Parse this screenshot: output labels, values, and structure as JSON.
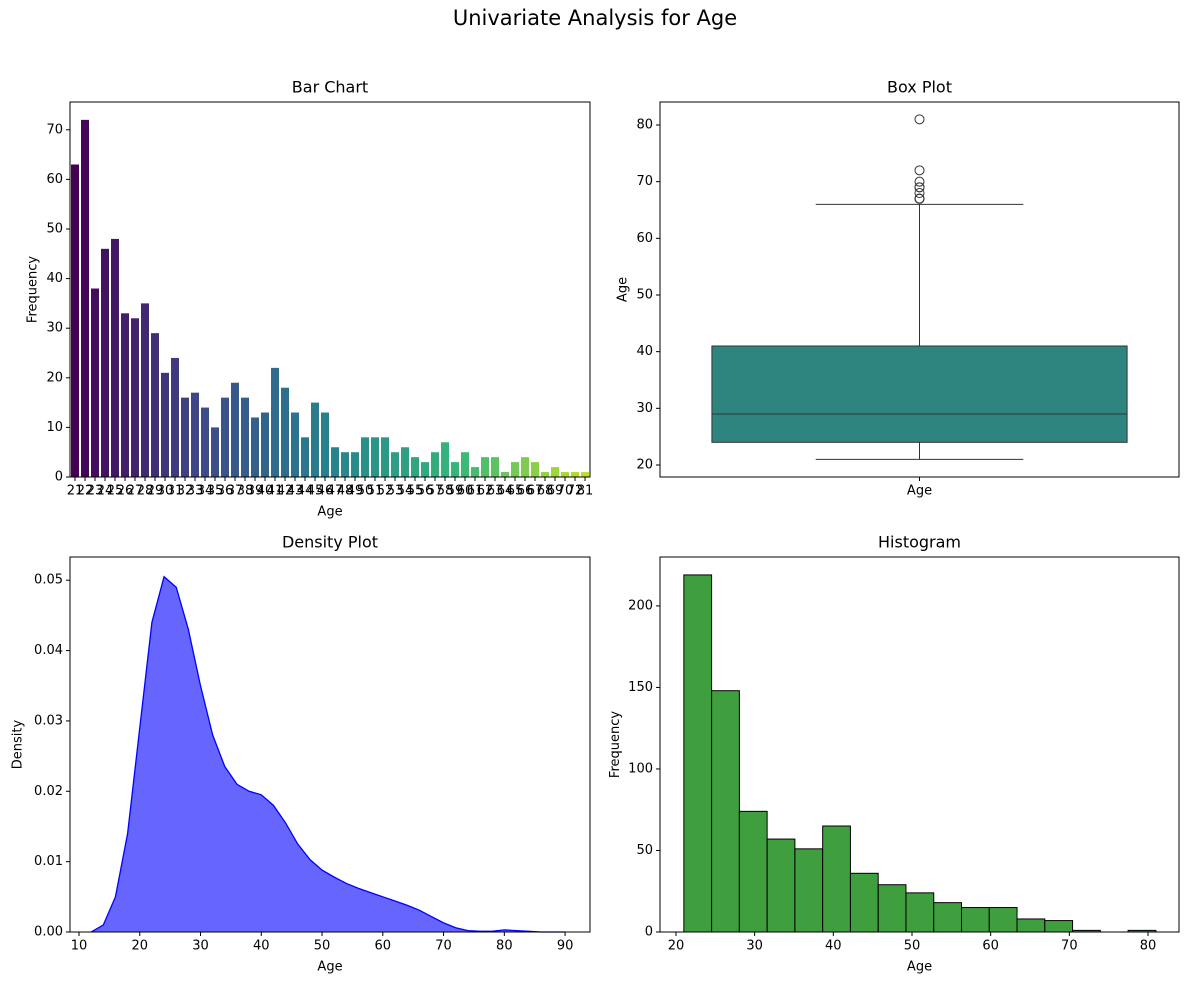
{
  "title": "Univariate Analysis for Age",
  "chart_data": [
    {
      "type": "bar",
      "title": "Bar Chart",
      "xlabel": "Age",
      "ylabel": "Frequency",
      "categories": [
        "21",
        "22",
        "23",
        "24",
        "25",
        "26",
        "27",
        "28",
        "29",
        "30",
        "31",
        "32",
        "33",
        "34",
        "35",
        "36",
        "37",
        "38",
        "39",
        "40",
        "41",
        "42",
        "43",
        "44",
        "45",
        "46",
        "47",
        "48",
        "49",
        "50",
        "51",
        "52",
        "53",
        "54",
        "55",
        "56",
        "57",
        "58",
        "59",
        "60",
        "61",
        "62",
        "63",
        "64",
        "65",
        "66",
        "67",
        "68",
        "69",
        "70",
        "72",
        "81"
      ],
      "values": [
        63,
        72,
        38,
        46,
        48,
        33,
        32,
        35,
        29,
        21,
        24,
        16,
        17,
        14,
        10,
        16,
        19,
        16,
        12,
        13,
        22,
        18,
        13,
        8,
        15,
        13,
        6,
        5,
        5,
        8,
        8,
        8,
        5,
        6,
        4,
        3,
        5,
        7,
        3,
        5,
        2,
        4,
        4,
        1,
        3,
        4,
        3,
        1,
        2,
        1,
        1,
        1
      ],
      "palette": [
        "#440154",
        "#3e4a89",
        "#26828e",
        "#35b779",
        "#bddf26"
      ],
      "ylim": [
        0,
        75.6
      ],
      "yticks": [
        0,
        10,
        20,
        30,
        40,
        50,
        60,
        70
      ]
    },
    {
      "type": "box",
      "title": "Box Plot",
      "ylabel": "Age",
      "categories": [
        "Age"
      ],
      "q1": 24,
      "median": 29,
      "q3": 41,
      "whisker_low": 21,
      "whisker_high": 66,
      "outliers": [
        67,
        67,
        67,
        68,
        69,
        69,
        70,
        72,
        81
      ],
      "color": "#2e8580",
      "ylim": [
        17.88,
        84.06
      ],
      "yticks": [
        20,
        30,
        40,
        50,
        60,
        70,
        80
      ]
    },
    {
      "type": "area",
      "title": "Density Plot",
      "xlabel": "Age",
      "ylabel": "Density",
      "x": [
        12,
        14,
        16,
        18,
        20,
        22,
        24,
        26,
        28,
        30,
        32,
        34,
        36,
        38,
        40,
        42,
        44,
        46,
        48,
        50,
        52,
        54,
        56,
        58,
        60,
        62,
        64,
        66,
        68,
        70,
        72,
        74,
        76,
        78,
        80,
        82,
        84,
        86,
        88,
        90
      ],
      "values": [
        0,
        0.001,
        0.005,
        0.014,
        0.029,
        0.044,
        0.0505,
        0.049,
        0.043,
        0.035,
        0.028,
        0.0235,
        0.021,
        0.02,
        0.0195,
        0.018,
        0.0155,
        0.0125,
        0.0103,
        0.0088,
        0.0078,
        0.0069,
        0.0062,
        0.0056,
        0.005,
        0.0044,
        0.0038,
        0.0031,
        0.0022,
        0.0013,
        0.0006,
        0.0002,
        0.0001,
        0.0001,
        0.0003,
        0.0002,
        0.0001,
        0,
        0,
        0
      ],
      "color": "#0000ff",
      "fill": "#6666ff",
      "xlim": [
        8.52,
        94.1
      ],
      "xticks": [
        10,
        20,
        30,
        40,
        50,
        60,
        70,
        80,
        90
      ],
      "ylim": [
        0,
        0.0533
      ],
      "yticks": [
        {
          "value": 0,
          "label": "0.00"
        },
        {
          "value": 0.01,
          "label": "0.01"
        },
        {
          "value": 0.02,
          "label": "0.02"
        },
        {
          "value": 0.03,
          "label": "0.03"
        },
        {
          "value": 0.04,
          "label": "0.04"
        },
        {
          "value": 0.05,
          "label": "0.05"
        }
      ]
    },
    {
      "type": "histogram",
      "title": "Histogram",
      "xlabel": "Age",
      "ylabel": "Frequency",
      "bins": [
        21,
        24.529,
        28.059,
        31.588,
        35.118,
        38.647,
        42.176,
        45.706,
        49.235,
        52.765,
        56.294,
        59.824,
        63.353,
        66.882,
        70.412,
        73.941,
        77.471,
        81
      ],
      "values": [
        219,
        148,
        74,
        57,
        51,
        65,
        36,
        29,
        24,
        18,
        15,
        15,
        8,
        7,
        1,
        0,
        1
      ],
      "color": "#3f9f3f",
      "xlim": [
        17.97,
        83.94
      ],
      "xticks": [
        20,
        30,
        40,
        50,
        60,
        70,
        80
      ],
      "ylim": [
        0,
        230
      ],
      "yticks": [
        0,
        50,
        100,
        150,
        200
      ]
    }
  ]
}
